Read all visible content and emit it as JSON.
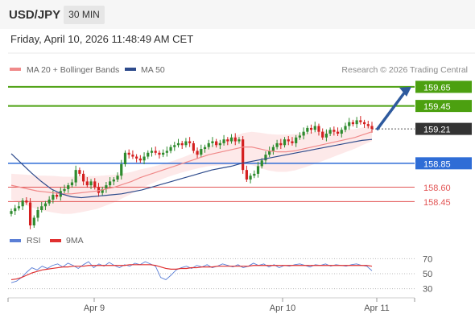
{
  "header": {
    "pair": "USD/JPY",
    "timeframe": "30 MIN"
  },
  "datetime": "Friday, April 10, 2026 11:48:49 AM CET",
  "legend": {
    "items": [
      {
        "label": "MA 20 + Bollinger Bands",
        "color": "#f08a8a"
      },
      {
        "label": "MA 50",
        "color": "#2e4b8c"
      }
    ],
    "credit": "Research © 2026 Trading Central"
  },
  "rsi_legend": {
    "items": [
      {
        "label": "RSI",
        "color": "#5b7fd6"
      },
      {
        "label": "9MA",
        "color": "#e03030"
      }
    ]
  },
  "colors": {
    "green": "#4ca010",
    "blue": "#2f6dd6",
    "red": "#e25555",
    "dark": "#333333",
    "up": "#2e8b2e",
    "down": "#d42020"
  },
  "chart_data": [
    {
      "type": "candlestick",
      "x_tick_labels": [
        "Apr 9",
        "Apr 10",
        "Apr 11"
      ],
      "ylim": [
        158.2,
        159.75
      ],
      "levels": [
        {
          "value": 159.65,
          "label": "159.65",
          "kind": "resistance"
        },
        {
          "value": 159.45,
          "label": "159.45",
          "kind": "resistance"
        },
        {
          "value": 159.21,
          "label": "159.21",
          "kind": "current"
        },
        {
          "value": 158.85,
          "label": "158.85",
          "kind": "pivot"
        },
        {
          "value": 158.6,
          "label": "158.60",
          "kind": "support"
        },
        {
          "value": 158.45,
          "label": "158.45",
          "kind": "support"
        }
      ],
      "forecast": {
        "from": 159.2,
        "to": 159.65,
        "direction": "up"
      },
      "candles_close": [
        158.35,
        158.38,
        158.4,
        158.46,
        158.44,
        158.2,
        158.28,
        158.36,
        158.4,
        158.43,
        158.47,
        158.52,
        158.5,
        158.56,
        158.58,
        158.62,
        158.65,
        158.78,
        158.74,
        158.66,
        158.62,
        158.66,
        158.6,
        158.54,
        158.58,
        158.62,
        158.66,
        158.68,
        158.72,
        158.84,
        158.96,
        158.94,
        158.92,
        158.9,
        158.88,
        158.92,
        158.96,
        158.98,
        158.96,
        158.94,
        158.96,
        158.98,
        159.02,
        159.04,
        159.06,
        159.04,
        159.08,
        159.06,
        158.98,
        158.94,
        159.0,
        159.02,
        159.06,
        159.08,
        159.04,
        159.06,
        159.1,
        159.08,
        159.12,
        159.08,
        159.1,
        158.78,
        158.68,
        158.72,
        158.74,
        158.82,
        158.88,
        158.94,
        158.98,
        159.02,
        159.06,
        159.04,
        159.1,
        159.08,
        159.06,
        159.12,
        159.14,
        159.18,
        159.22,
        159.2,
        159.24,
        159.18,
        159.12,
        159.16,
        159.2,
        159.18,
        159.16,
        159.2,
        159.24,
        159.28,
        159.26,
        159.3,
        159.28,
        159.26,
        159.24,
        159.21
      ],
      "ma20": [
        158.62,
        158.6,
        158.58,
        158.56,
        158.55,
        158.54,
        158.53,
        158.53,
        158.54,
        158.55,
        158.56,
        158.58,
        158.6,
        158.63,
        158.66,
        158.7,
        158.73,
        158.76,
        158.79,
        158.82,
        158.85,
        158.88,
        158.91,
        158.94,
        158.96,
        158.98,
        159.0,
        159.02,
        159.02,
        159.0,
        158.98,
        158.97,
        158.97,
        158.98,
        159.0,
        159.02,
        159.04,
        159.06,
        159.08,
        159.1,
        159.12,
        159.15,
        159.18
      ],
      "ma50": [
        158.95,
        158.85,
        158.75,
        158.66,
        158.58,
        158.53,
        158.5,
        158.49,
        158.5,
        158.51,
        158.52,
        158.53,
        158.55,
        158.57,
        158.6,
        158.63,
        158.66,
        158.69,
        158.72,
        158.75,
        158.78,
        158.8,
        158.82,
        158.85,
        158.87,
        158.89,
        158.91,
        158.93,
        158.95,
        158.97,
        158.99,
        159.01,
        159.03,
        159.05,
        159.07,
        159.09,
        159.1
      ]
    },
    {
      "type": "line",
      "name": "RSI panel",
      "y_tick_labels": [
        "70",
        "50",
        "30"
      ],
      "ylim": [
        20,
        80
      ],
      "series": [
        {
          "name": "RSI",
          "values": [
            38,
            40,
            45,
            52,
            58,
            55,
            60,
            57,
            61,
            63,
            59,
            64,
            61,
            57,
            62,
            66,
            58,
            63,
            60,
            65,
            61,
            58,
            62,
            60,
            64,
            62,
            66,
            63,
            60,
            45,
            42,
            48,
            55,
            58,
            60,
            57,
            61,
            59,
            62,
            58,
            60,
            63,
            61,
            59,
            62,
            58,
            60,
            64,
            61,
            63,
            59,
            62,
            58,
            61,
            60,
            62,
            63,
            61,
            59,
            62,
            61,
            63,
            60,
            62,
            61,
            60,
            62,
            63,
            61,
            60,
            54
          ]
        },
        {
          "name": "9MA",
          "values": [
            42,
            43,
            45,
            48,
            51,
            53,
            55,
            56,
            57,
            58,
            59,
            59,
            60,
            60,
            60,
            61,
            61,
            61,
            61,
            61,
            61,
            61,
            61,
            62,
            62,
            62,
            62,
            62,
            61,
            59,
            57,
            56,
            56,
            57,
            57,
            58,
            58,
            59,
            59,
            59,
            60,
            60,
            60,
            60,
            60,
            60,
            60,
            61,
            61,
            61,
            61,
            61,
            61,
            61,
            61,
            61,
            61,
            61,
            61,
            61,
            61,
            61,
            61,
            61,
            61,
            61,
            61,
            61,
            61,
            61,
            60
          ]
        }
      ]
    }
  ]
}
